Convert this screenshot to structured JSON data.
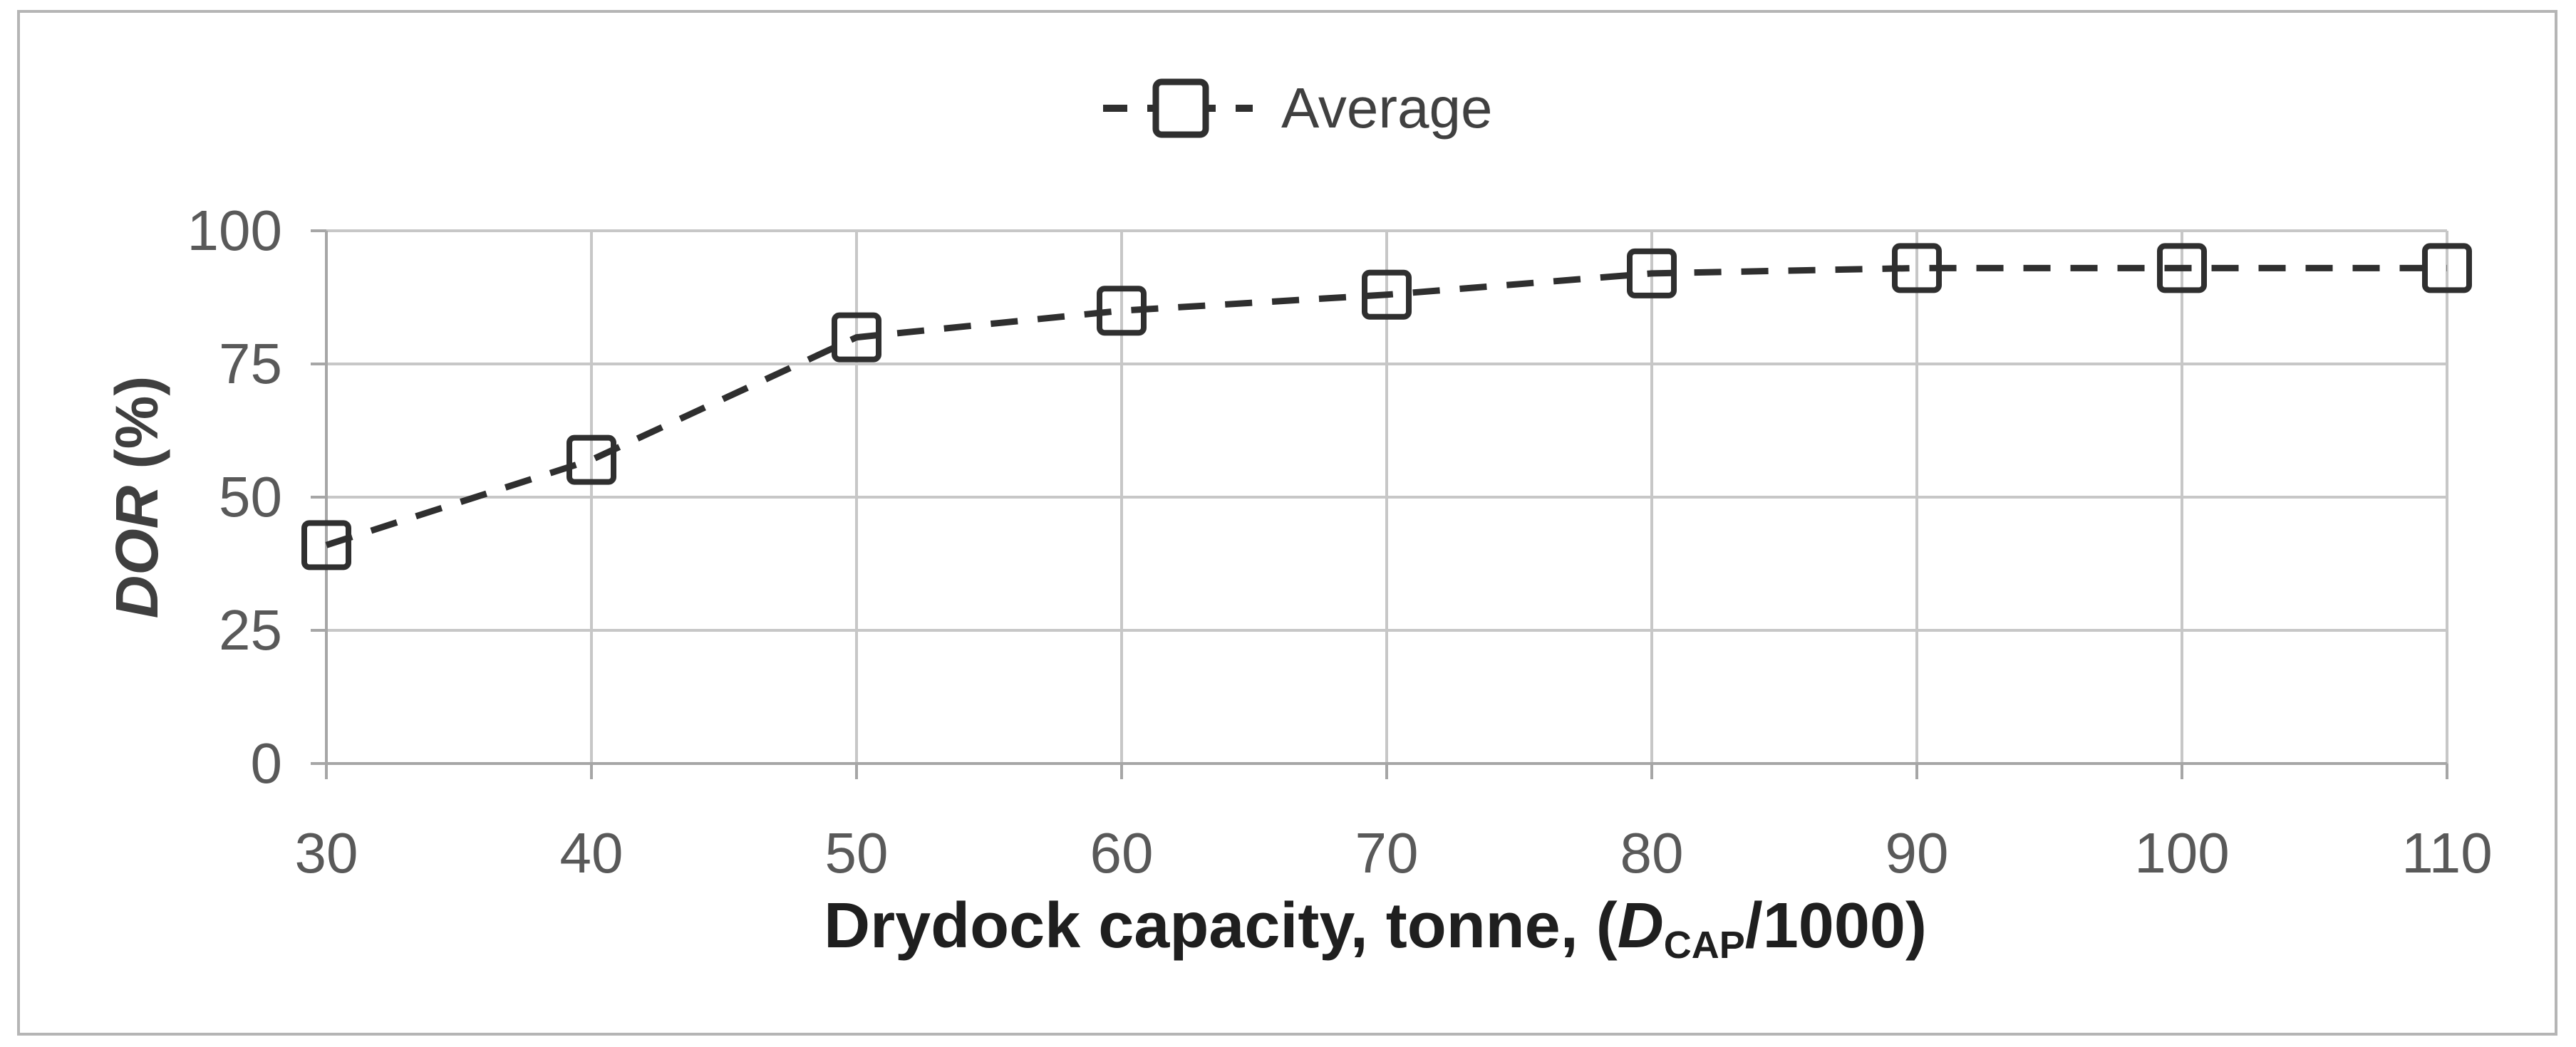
{
  "figure": {
    "background": "#ffffff",
    "border_color": "#b5b5b5"
  },
  "legend": {
    "label": "Average",
    "marker": "open-square",
    "line_style": "dashed"
  },
  "chart_data": {
    "type": "line",
    "title": "",
    "x": [
      30,
      40,
      50,
      60,
      70,
      80,
      90,
      100,
      110
    ],
    "series": [
      {
        "name": "Average",
        "values": [
          41,
          57,
          80,
          85,
          88,
          92,
          93,
          93,
          93
        ]
      }
    ],
    "xticks": [
      "30",
      "40",
      "50",
      "60",
      "70",
      "80",
      "90",
      "100",
      "110"
    ],
    "yticks": [
      "0",
      "25",
      "50",
      "75",
      "100"
    ],
    "ytick_values": [
      0,
      25,
      50,
      75,
      100
    ],
    "xlim": [
      30,
      110
    ],
    "ylim": [
      0,
      100
    ],
    "grid": true,
    "legend_position": "top-center",
    "xlabel": {
      "prefix": "Drydock capacity, tonne, (",
      "var": "D",
      "sub": "CAP",
      "suffix": "/1000)"
    },
    "ylabel": {
      "var": "DOR",
      "rest": " (%)"
    },
    "colors": {
      "series_line": "#2f2f2f",
      "marker_stroke": "#2f2f2f",
      "gridline": "#c7c7c7",
      "axis_line": "#a6a6a6",
      "tick_label": "#595959",
      "x_title": "#1f1f1f",
      "y_title": "#3f3f3f",
      "legend_text": "#404040"
    }
  }
}
